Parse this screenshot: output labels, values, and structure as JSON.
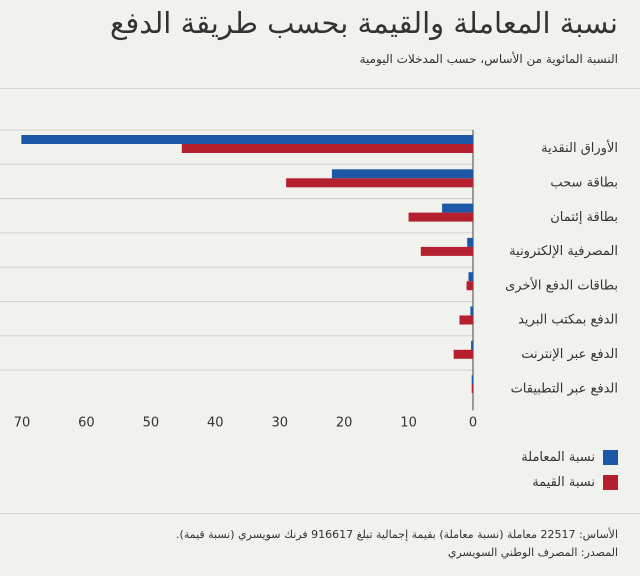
{
  "header": {
    "title": "نسبة المعاملة والقيمة بحسب طريقة الدفع",
    "subtitle": "النسبة المائوية من الأساس، حسب المدخلات اليومية"
  },
  "colors": {
    "transaction": "#1c58a6",
    "value": "#b5202e",
    "grid": "#d2d2cd",
    "axis": "#444444"
  },
  "chart_data": {
    "type": "bar",
    "orientation": "horizontal",
    "x_direction": "reversed",
    "categories": [
      "الأوراق النقدية",
      "بطاقة سحب",
      "بطاقة إئتمان",
      "المصرفية الإلكترونية",
      "بطاقات الدفع الأخرى",
      "الدفع بمكتب البريد",
      "الدفع عبر الإنترنت",
      "الدفع عبر التطبيقات"
    ],
    "series": [
      {
        "name": "نسبة المعاملة",
        "values": [
          70.1,
          21.9,
          4.8,
          0.9,
          0.7,
          0.4,
          0.3,
          0.2
        ]
      },
      {
        "name": "نسبة القيمة",
        "values": [
          45.2,
          29.0,
          10.0,
          8.1,
          1.0,
          2.1,
          3.0,
          0.2
        ]
      }
    ],
    "xlim": [
      0,
      70
    ],
    "xticks": [
      70,
      60,
      50,
      40,
      30,
      20,
      10,
      0
    ],
    "grid": true,
    "legend": "bottom-right"
  },
  "footer": {
    "basis_note": "الأساس: 22517 معاملة (نسبة معاملة) بقيمة إجمالية تبلغ 916617 فرنك سويسري (نسبة قيمة).",
    "source": "المصدر: المصرف الوطني السويسري"
  }
}
